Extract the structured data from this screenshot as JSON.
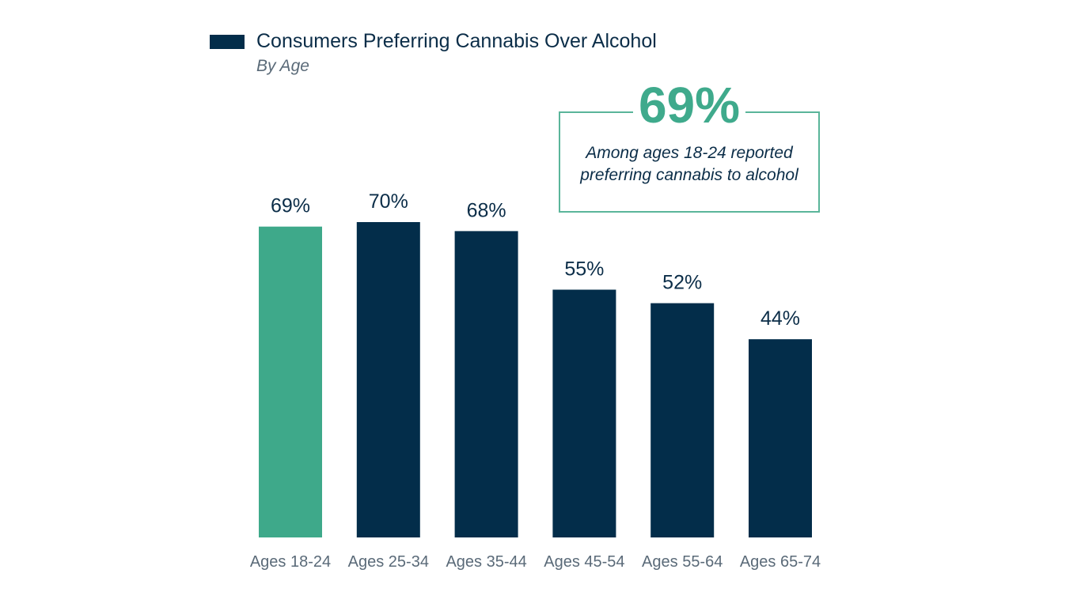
{
  "chart_data": {
    "type": "bar",
    "title": "Consumers Preferring Cannabis Over Alcohol",
    "subtitle": "By Age",
    "categories": [
      "Ages 18-24",
      "Ages 25-34",
      "Ages 35-44",
      "Ages 45-54",
      "Ages 55-64",
      "Ages 65-74"
    ],
    "series": [
      {
        "name": "Consumers Preferring Cannabis Over Alcohol",
        "values": [
          69,
          70,
          68,
          55,
          52,
          44
        ]
      }
    ],
    "value_labels": [
      "69%",
      "70%",
      "68%",
      "55%",
      "52%",
      "44%"
    ],
    "ylim": [
      0,
      70
    ],
    "grid": false,
    "legend_placement": "top-left",
    "highlight_index": 0,
    "colors": {
      "primary": "#032d4a",
      "highlight": "#3ea98a",
      "label_text": "#0b2d48",
      "tick_text": "#5a6a78",
      "callout_border": "#5ab59a"
    },
    "callout": {
      "value": "69%",
      "text_line1": "Among ages 18-24 reported",
      "text_line2": "preferring cannabis to alcohol"
    }
  }
}
